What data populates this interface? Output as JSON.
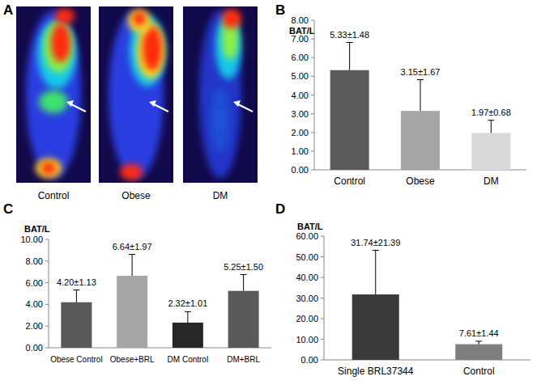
{
  "image_panel": {
    "panel_label": "A",
    "captions": [
      "Control",
      "Obese",
      "DM"
    ]
  },
  "chart_data": [
    {
      "type": "bar",
      "panel_label": "B",
      "y_label": "BAT/L",
      "categories": [
        "Control",
        "Obese",
        "DM"
      ],
      "values": [
        5.33,
        3.15,
        1.97
      ],
      "errors": [
        1.48,
        1.67,
        0.68
      ],
      "value_labels": [
        "5.33±1.48",
        "3.15±1.67",
        "1.97±0.68"
      ],
      "data_labels": true,
      "colors": [
        "#5a5a5a",
        "#a6a6a6",
        "#d9d9d9"
      ],
      "ylim": [
        0,
        8
      ],
      "yticks": [
        {
          "value": 0,
          "label": "0.00"
        },
        {
          "value": 1,
          "label": "1.00"
        },
        {
          "value": 2,
          "label": "2.00"
        },
        {
          "value": 3,
          "label": "3.00"
        },
        {
          "value": 4,
          "label": "4.00"
        },
        {
          "value": 5,
          "label": "5.00"
        },
        {
          "value": 6,
          "label": "6.00"
        },
        {
          "value": 7,
          "label": "7.00"
        },
        {
          "value": 8,
          "label": "8.00"
        }
      ],
      "grid": false
    },
    {
      "type": "bar",
      "panel_label": "C",
      "y_label": "BAT/L",
      "categories": [
        "Obese Control",
        "Obese+BRL",
        "DM Control",
        "DM+BRL"
      ],
      "values": [
        4.2,
        6.64,
        2.32,
        5.25
      ],
      "errors": [
        1.13,
        1.97,
        1.01,
        1.5
      ],
      "value_labels": [
        "4.20±1.13",
        "6.64±1.97",
        "2.32±1.01",
        "5.25±1.50"
      ],
      "data_labels": true,
      "colors": [
        "#595959",
        "#a6a6a6",
        "#262626",
        "#595959"
      ],
      "ylim": [
        0,
        10
      ],
      "yticks": [
        {
          "value": 0,
          "label": "0.00"
        },
        {
          "value": 2,
          "label": "2.00"
        },
        {
          "value": 4,
          "label": "4.00"
        },
        {
          "value": 6,
          "label": "6.00"
        },
        {
          "value": 8,
          "label": "8.00"
        },
        {
          "value": 10,
          "label": "10.00"
        }
      ],
      "grid": false
    },
    {
      "type": "bar",
      "panel_label": "D",
      "y_label": "BAT/L",
      "categories": [
        "Single BRL37344",
        "Control"
      ],
      "values": [
        31.74,
        7.61
      ],
      "errors": [
        21.39,
        1.44
      ],
      "value_labels": [
        "31.74±21.39",
        "7.61±1.44"
      ],
      "data_labels": true,
      "colors": [
        "#3a3a3a",
        "#7f7f7f"
      ],
      "ylim": [
        0,
        60
      ],
      "yticks": [
        {
          "value": 0,
          "label": "0.00"
        },
        {
          "value": 10,
          "label": "10.00"
        },
        {
          "value": 20,
          "label": "20.00"
        },
        {
          "value": 30,
          "label": "30.00"
        },
        {
          "value": 40,
          "label": "40.00"
        },
        {
          "value": 50,
          "label": "50.00"
        },
        {
          "value": 60,
          "label": "60.00"
        }
      ],
      "grid": false
    }
  ]
}
